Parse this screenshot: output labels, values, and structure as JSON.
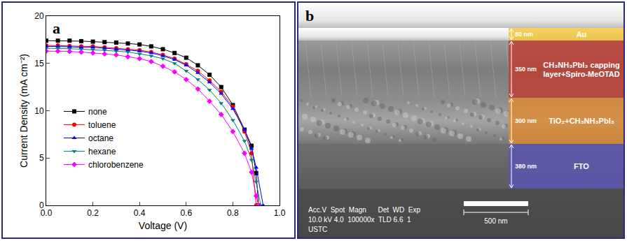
{
  "chart_data": {
    "type": "line",
    "panel_label": "a",
    "x_title": "Voltage (V)",
    "y_title": "Current Density (mA cm⁻²)",
    "xlim": [
      0,
      1.0
    ],
    "xticks": [
      {
        "value": 0,
        "label": "0.0"
      },
      0.2,
      0.4,
      0.6,
      0.8,
      {
        "value": 1.0,
        "label": "1.0"
      }
    ],
    "ylim": [
      0,
      20
    ],
    "yticks": [
      0,
      5,
      10,
      15,
      20
    ],
    "grid": false,
    "legend": "center left",
    "series": [
      {
        "name": "none",
        "color": "#000000",
        "marker": "square",
        "line_style": "solid",
        "x": [
          0,
          0.05,
          0.1,
          0.15,
          0.2,
          0.25,
          0.3,
          0.35,
          0.4,
          0.45,
          0.5,
          0.55,
          0.6,
          0.65,
          0.7,
          0.75,
          0.8,
          0.85,
          0.88,
          0.9,
          0.91
        ],
        "values": [
          17.4,
          17.4,
          17.4,
          17.35,
          17.3,
          17.25,
          17.2,
          17.1,
          17.0,
          16.8,
          16.5,
          16.1,
          15.6,
          14.8,
          13.8,
          12.5,
          10.6,
          8.0,
          6.3,
          3.4,
          0
        ]
      },
      {
        "name": "toluene",
        "color": "#ff0000",
        "marker": "circle",
        "line_style": "solid",
        "x": [
          0,
          0.05,
          0.1,
          0.15,
          0.2,
          0.25,
          0.3,
          0.35,
          0.4,
          0.45,
          0.5,
          0.55,
          0.6,
          0.65,
          0.7,
          0.75,
          0.8,
          0.85,
          0.88,
          0.9
        ],
        "values": [
          16.9,
          16.9,
          16.85,
          16.8,
          16.8,
          16.7,
          16.6,
          16.5,
          16.4,
          16.2,
          15.9,
          15.5,
          14.9,
          14.2,
          13.2,
          12.0,
          10.4,
          7.8,
          5.5,
          0
        ]
      },
      {
        "name": "octane",
        "color": "#0000ff",
        "marker": "triangle-up",
        "line_style": "solid",
        "x": [
          0,
          0.05,
          0.1,
          0.15,
          0.2,
          0.25,
          0.3,
          0.35,
          0.4,
          0.45,
          0.5,
          0.55,
          0.6,
          0.65,
          0.7,
          0.75,
          0.8,
          0.85,
          0.88,
          0.9,
          0.93
        ],
        "values": [
          16.8,
          16.8,
          16.75,
          16.7,
          16.7,
          16.6,
          16.5,
          16.4,
          16.3,
          16.1,
          15.8,
          15.4,
          14.8,
          14.0,
          13.0,
          11.8,
          10.2,
          8.0,
          6.0,
          4.0,
          0
        ]
      },
      {
        "name": "hexane",
        "color": "#008080",
        "marker": "triangle-down",
        "line_style": "solid",
        "x": [
          0,
          0.05,
          0.1,
          0.15,
          0.2,
          0.25,
          0.3,
          0.35,
          0.4,
          0.45,
          0.5,
          0.55,
          0.6,
          0.65,
          0.7,
          0.75,
          0.8,
          0.85,
          0.88,
          0.9,
          0.92
        ],
        "values": [
          16.6,
          16.6,
          16.55,
          16.5,
          16.45,
          16.4,
          16.3,
          16.2,
          16.0,
          15.8,
          15.5,
          15.0,
          14.2,
          13.3,
          12.2,
          10.8,
          9.0,
          6.8,
          4.8,
          2.5,
          0
        ]
      },
      {
        "name": "chlorobenzene",
        "color": "#ff00ff",
        "marker": "diamond",
        "line_style": "solid",
        "x": [
          0,
          0.05,
          0.1,
          0.15,
          0.2,
          0.25,
          0.3,
          0.35,
          0.4,
          0.45,
          0.5,
          0.55,
          0.6,
          0.65,
          0.7,
          0.75,
          0.8,
          0.85,
          0.88,
          0.9,
          0.91
        ],
        "values": [
          16.3,
          16.3,
          16.25,
          16.2,
          16.1,
          16.0,
          15.9,
          15.7,
          15.5,
          15.2,
          14.7,
          14.1,
          13.3,
          12.3,
          11.0,
          9.6,
          7.8,
          5.5,
          3.5,
          1.0,
          0
        ]
      }
    ]
  },
  "sem_image": {
    "panel_label": "b",
    "layers": [
      {
        "name": "Au",
        "thickness": "80 nm",
        "color": "#f2c12e"
      },
      {
        "name": "CH₃NH₃PbI₃ capping layer+Spiro-MeOTAD",
        "thickness": "350 nm",
        "color": "#c0392b"
      },
      {
        "name": "TiO₂+CH₃NH₃PbI₃",
        "thickness": "300 nm",
        "color": "#e08a2c"
      },
      {
        "name": "FTO",
        "thickness": "380 nm",
        "color": "#5b55b8"
      }
    ],
    "info_header": "Acc.V  Spot  Magn      Det  WD  Exp",
    "info_values": "10.0 kV 4.0  100000x  TLD 6.6  1",
    "institution": "USTC",
    "scale_bar": "500 nm"
  }
}
